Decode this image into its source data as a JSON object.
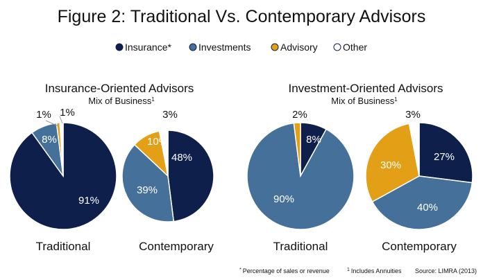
{
  "chart_data": {
    "type": "pie",
    "title": "Figure 2: Traditional Vs. Contemporary Advisors",
    "legend": {
      "placement": "top",
      "entries": [
        {
          "name": "Insurance*",
          "color": "#0d1f4a"
        },
        {
          "name": "Investments",
          "color": "#44709a"
        },
        {
          "name": "Advisory",
          "color": "#e39f16"
        },
        {
          "name": "Other",
          "color": "#ffffff"
        }
      ]
    },
    "groups": [
      {
        "title": "Insurance-Oriented Advisors",
        "subtitle": "Mix of Business",
        "subtitle_mark": "1",
        "pies": [
          {
            "label": "Traditional",
            "slices": [
              {
                "name": "Insurance*",
                "value": 91,
                "label": "91%"
              },
              {
                "name": "Investments",
                "value": 8,
                "label": "8%"
              },
              {
                "name": "Advisory",
                "value": 1,
                "label": "1%"
              },
              {
                "name": "Other",
                "value": 1,
                "label": "1%"
              }
            ]
          },
          {
            "label": "Contemporary",
            "slices": [
              {
                "name": "Insurance*",
                "value": 48,
                "label": "48%"
              },
              {
                "name": "Investments",
                "value": 39,
                "label": "39%"
              },
              {
                "name": "Advisory",
                "value": 10,
                "label": "10%"
              },
              {
                "name": "Other",
                "value": 3,
                "label": "3%"
              }
            ]
          }
        ]
      },
      {
        "title": "Investment-Oriented Advisors",
        "subtitle": "Mix of Business",
        "subtitle_mark": "1",
        "pies": [
          {
            "label": "Traditional",
            "slices": [
              {
                "name": "Insurance*",
                "value": 8,
                "label": "8%"
              },
              {
                "name": "Investments",
                "value": 90,
                "label": "90%"
              },
              {
                "name": "Advisory",
                "value": 2,
                "label": "2%"
              },
              {
                "name": "Other",
                "value": 0,
                "label": ""
              }
            ]
          },
          {
            "label": "Contemporary",
            "slices": [
              {
                "name": "Insurance*",
                "value": 27,
                "label": "27%"
              },
              {
                "name": "Investments",
                "value": 40,
                "label": "40%"
              },
              {
                "name": "Advisory",
                "value": 30,
                "label": "30%"
              },
              {
                "name": "Other",
                "value": 3,
                "label": "3%"
              }
            ]
          }
        ]
      }
    ],
    "footnotes": [
      {
        "mark": "*",
        "text": "Percentage of sales or revenue"
      },
      {
        "mark": "1",
        "text": "Includes Annuities"
      },
      {
        "mark": "",
        "text": "Source: LIMRA (2013)"
      }
    ]
  }
}
